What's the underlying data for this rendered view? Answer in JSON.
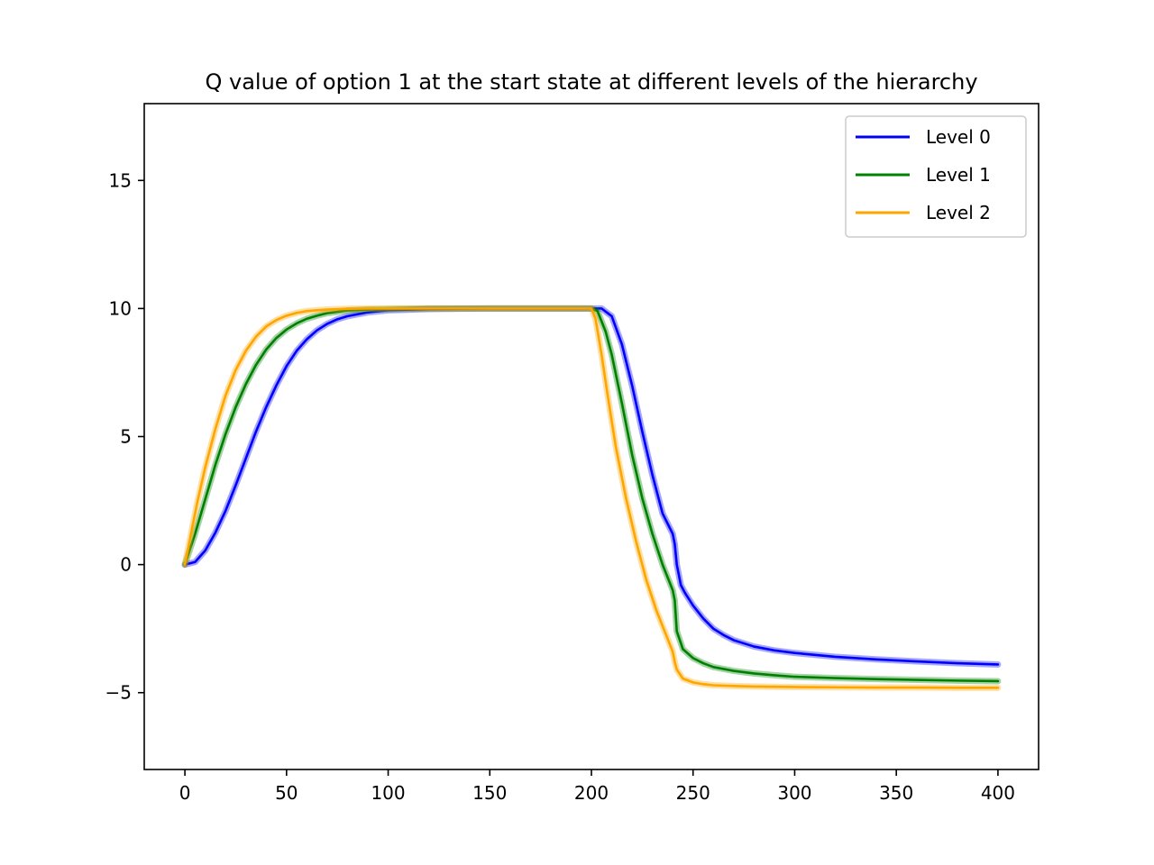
{
  "chart_data": {
    "type": "line",
    "title": "Q value of option 1 at the start state at different levels of the hierarchy",
    "xlabel": "",
    "ylabel": "",
    "xlim": [
      -20,
      420
    ],
    "ylim": [
      -8,
      18
    ],
    "xticks": [
      0,
      50,
      100,
      150,
      200,
      250,
      300,
      350,
      400
    ],
    "yticks": [
      -5,
      0,
      5,
      10,
      15
    ],
    "ytick_labels": [
      "−5",
      "0",
      "5",
      "10",
      "15"
    ],
    "grid": false,
    "legend_position": "top-right",
    "series": [
      {
        "name": "Level 0",
        "color": "#0000ff",
        "x": [
          0,
          5,
          10,
          15,
          20,
          25,
          30,
          35,
          40,
          45,
          50,
          55,
          60,
          65,
          70,
          75,
          80,
          90,
          100,
          120,
          150,
          200,
          205,
          210,
          215,
          220,
          225,
          230,
          235,
          240,
          241,
          242,
          244,
          246,
          250,
          255,
          260,
          265,
          270,
          280,
          290,
          300,
          320,
          340,
          360,
          380,
          400
        ],
        "y": [
          0,
          0.1,
          0.55,
          1.25,
          2.1,
          3.1,
          4.15,
          5.2,
          6.15,
          7.0,
          7.75,
          8.35,
          8.8,
          9.15,
          9.4,
          9.58,
          9.7,
          9.85,
          9.93,
          9.98,
          10,
          10,
          10,
          9.7,
          8.6,
          7.0,
          5.2,
          3.5,
          2.0,
          1.2,
          0.8,
          0.0,
          -0.8,
          -1.1,
          -1.6,
          -2.1,
          -2.5,
          -2.75,
          -2.95,
          -3.2,
          -3.35,
          -3.45,
          -3.6,
          -3.7,
          -3.78,
          -3.85,
          -3.9
        ]
      },
      {
        "name": "Level 1",
        "color": "#008000",
        "x": [
          0,
          5,
          10,
          15,
          20,
          25,
          30,
          35,
          40,
          45,
          50,
          55,
          60,
          65,
          70,
          80,
          90,
          100,
          120,
          150,
          200,
          203,
          207,
          210,
          215,
          220,
          225,
          230,
          235,
          240,
          241,
          242,
          245,
          250,
          255,
          260,
          270,
          280,
          290,
          300,
          320,
          340,
          360,
          380,
          400
        ],
        "y": [
          0,
          1.2,
          2.55,
          3.9,
          5.1,
          6.15,
          7.05,
          7.8,
          8.4,
          8.85,
          9.18,
          9.42,
          9.6,
          9.72,
          9.82,
          9.92,
          9.96,
          9.98,
          10,
          10,
          10,
          9.9,
          9.1,
          8.2,
          6.3,
          4.3,
          2.6,
          1.2,
          0.0,
          -1.0,
          -1.4,
          -2.6,
          -3.3,
          -3.65,
          -3.85,
          -4.0,
          -4.15,
          -4.25,
          -4.32,
          -4.38,
          -4.43,
          -4.47,
          -4.5,
          -4.53,
          -4.55
        ]
      },
      {
        "name": "Level 2",
        "color": "#ffa500",
        "x": [
          0,
          3,
          6,
          10,
          15,
          20,
          25,
          30,
          35,
          40,
          45,
          50,
          55,
          60,
          70,
          80,
          90,
          100,
          120,
          150,
          200,
          202,
          205,
          208,
          212,
          217,
          222,
          227,
          232,
          237,
          240,
          241,
          242,
          245,
          250,
          255,
          260,
          270,
          280,
          290,
          300,
          320,
          340,
          360,
          380,
          400
        ],
        "y": [
          0,
          1.2,
          2.4,
          3.8,
          5.3,
          6.6,
          7.6,
          8.35,
          8.9,
          9.3,
          9.55,
          9.72,
          9.83,
          9.9,
          9.96,
          9.99,
          10,
          10,
          10,
          10,
          10,
          9.6,
          8.2,
          6.6,
          4.6,
          2.6,
          0.9,
          -0.6,
          -1.8,
          -2.8,
          -3.4,
          -3.8,
          -4.1,
          -4.45,
          -4.6,
          -4.67,
          -4.71,
          -4.74,
          -4.76,
          -4.77,
          -4.78,
          -4.79,
          -4.8,
          -4.8,
          -4.81,
          -4.81
        ]
      }
    ]
  }
}
